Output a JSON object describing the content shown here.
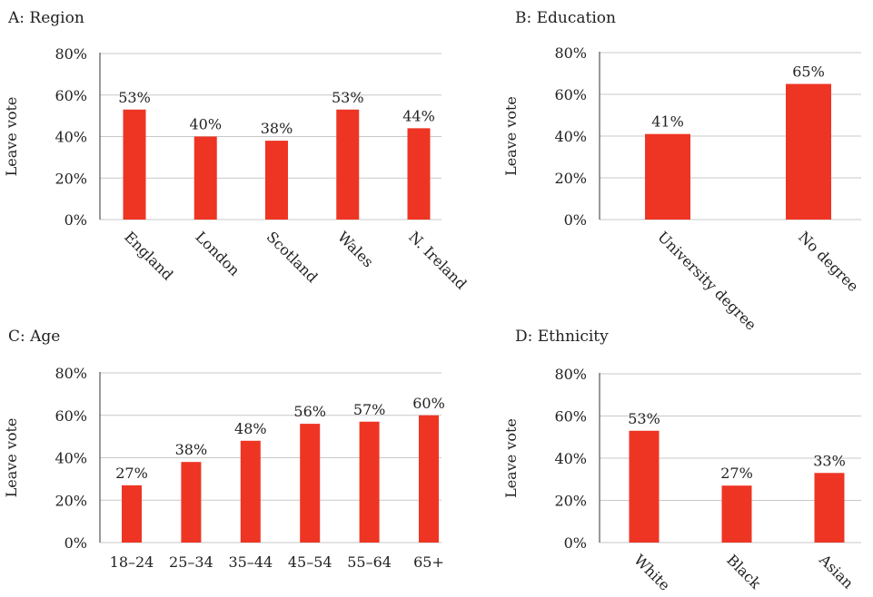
{
  "chart_data": [
    {
      "type": "bar",
      "title": "A: Region",
      "ylabel": "Leave vote",
      "xlabel": "",
      "ylim": [
        0,
        80
      ],
      "yticks": [
        "0%",
        "20%",
        "40%",
        "60%",
        "80%"
      ],
      "categories": [
        "England",
        "London",
        "Scotland",
        "Wales",
        "N. Ireland"
      ],
      "values": [
        53,
        40,
        38,
        53,
        44
      ],
      "data_labels": [
        "53%",
        "40%",
        "38%",
        "53%",
        "44%"
      ],
      "rotated_labels": true,
      "grid": true
    },
    {
      "type": "bar",
      "title": "B: Education",
      "ylabel": "Leave vote",
      "xlabel": "",
      "ylim": [
        0,
        80
      ],
      "yticks": [
        "0%",
        "20%",
        "40%",
        "60%",
        "80%"
      ],
      "categories": [
        "University degree",
        "No degree"
      ],
      "values": [
        41,
        65
      ],
      "data_labels": [
        "41%",
        "65%"
      ],
      "rotated_labels": true,
      "grid": true
    },
    {
      "type": "bar",
      "title": "C: Age",
      "ylabel": "Leave vote",
      "xlabel": "",
      "ylim": [
        0,
        80
      ],
      "yticks": [
        "0%",
        "20%",
        "40%",
        "60%",
        "80%"
      ],
      "categories": [
        "18–24",
        "25–34",
        "35–44",
        "45–54",
        "55–64",
        "65+"
      ],
      "values": [
        27,
        38,
        48,
        56,
        57,
        60
      ],
      "data_labels": [
        "27%",
        "38%",
        "48%",
        "56%",
        "57%",
        "60%"
      ],
      "rotated_labels": false,
      "grid": true
    },
    {
      "type": "bar",
      "title": "D: Ethnicity",
      "ylabel": "Leave vote",
      "xlabel": "",
      "ylim": [
        0,
        80
      ],
      "yticks": [
        "0%",
        "20%",
        "40%",
        "60%",
        "80%"
      ],
      "categories": [
        "White",
        "Black",
        "Asian"
      ],
      "values": [
        53,
        27,
        33
      ],
      "data_labels": [
        "53%",
        "27%",
        "33%"
      ],
      "rotated_labels": true,
      "grid": true
    }
  ],
  "colors": {
    "bar": "#ee3524",
    "grid": "#c8c8c8",
    "axis": "#333333",
    "text": "#222222"
  }
}
